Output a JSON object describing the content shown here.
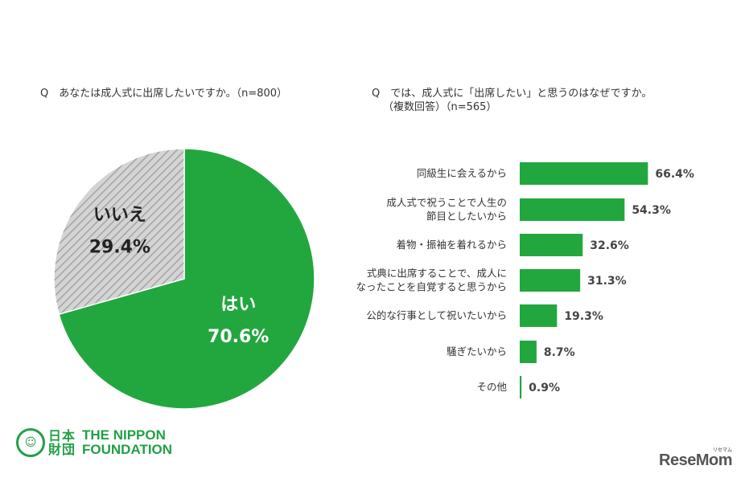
{
  "question_left": "Q　あなたは成人式に出席したいですか。（n=800）",
  "question_right_line1": "Q　では、成人式に「出席したい」と思うのはなぜですか。",
  "question_right_line2": "（複数回答）（n=565）",
  "colors": {
    "green": "#22a73f",
    "gray": "#d4d4d4",
    "hatch": "#9a9a9a"
  },
  "chart_data": [
    {
      "type": "pie",
      "categories": [
        "はい",
        "いいえ"
      ],
      "values": [
        70.6,
        29.4
      ],
      "value_labels": [
        "70.6%",
        "29.4%"
      ],
      "colors": [
        "#22a73f",
        "#d4d4d4"
      ]
    },
    {
      "type": "bar",
      "orientation": "horizontal",
      "categories": [
        [
          "同級生に会えるから"
        ],
        [
          "成人式で祝うことで人生の",
          "節目としたいから"
        ],
        [
          "着物・振袖を着れるから"
        ],
        [
          "式典に出席することで、成人に",
          "なったことを自覚すると思うから"
        ],
        [
          "公的な行事として祝いたいから"
        ],
        [
          "騒ぎたいから"
        ],
        [
          "その他"
        ]
      ],
      "values": [
        66.4,
        54.3,
        32.6,
        31.3,
        19.3,
        8.7,
        0.9
      ],
      "value_labels": [
        "66.4%",
        "54.3%",
        "32.6%",
        "31.3%",
        "19.3%",
        "8.7%",
        "0.9%"
      ],
      "xlim": [
        0,
        100
      ],
      "color": "#22a73f"
    }
  ],
  "logos": {
    "foundation_mark": "☺",
    "foundation_kanji": "日本財団",
    "foundation_en_1": "THE NIPPON",
    "foundation_en_2": "FOUNDATION",
    "resemom": "ReseMom",
    "resemom_kana": "リセマム"
  }
}
